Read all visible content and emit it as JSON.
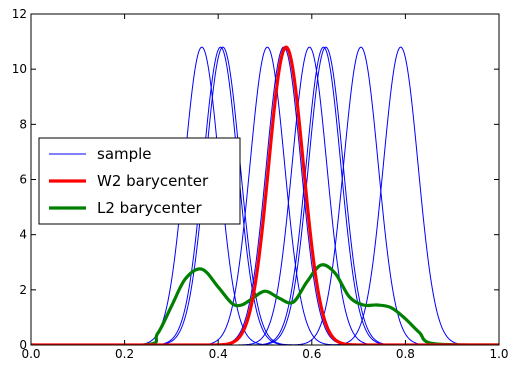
{
  "chart_data": {
    "type": "line",
    "title": "",
    "xlabel": "",
    "ylabel": "",
    "xlim": [
      0.0,
      1.0
    ],
    "ylim": [
      0,
      12
    ],
    "xticks": [
      "0.0",
      "0.2",
      "0.4",
      "0.6",
      "0.8",
      "1.0"
    ],
    "yticks": [
      "0",
      "2",
      "4",
      "6",
      "8",
      "10",
      "12"
    ],
    "grid": false,
    "legend_position": "center-left",
    "legend": [
      {
        "label": "sample",
        "color": "#0000ff",
        "style": "thin"
      },
      {
        "label": "W2 barycenter",
        "color": "#ff0000",
        "style": "thick"
      },
      {
        "label": "L2 barycenter",
        "color": "#008000",
        "style": "thick"
      }
    ],
    "sample_series": {
      "name": "sample",
      "color": "#0000ff",
      "peak": 10.8,
      "sigma": 0.037,
      "centers": [
        0.365,
        0.405,
        0.41,
        0.505,
        0.54,
        0.595,
        0.625,
        0.63,
        0.705,
        0.79
      ]
    },
    "w2_series": {
      "name": "W2 barycenter",
      "color": "#ff0000",
      "peak": 10.8,
      "sigma": 0.037,
      "center": 0.545
    },
    "l2_series": {
      "name": "L2 barycenter",
      "color": "#008000",
      "x": [
        0.0,
        0.24,
        0.27,
        0.3,
        0.33,
        0.365,
        0.4,
        0.43,
        0.45,
        0.47,
        0.5,
        0.53,
        0.56,
        0.59,
        0.62,
        0.65,
        0.68,
        0.71,
        0.74,
        0.77,
        0.8,
        0.83,
        0.86,
        1.0
      ],
      "y": [
        0.0,
        0.0,
        0.4,
        1.4,
        2.4,
        2.75,
        2.1,
        1.5,
        1.45,
        1.65,
        1.95,
        1.7,
        1.55,
        2.3,
        2.9,
        2.6,
        1.75,
        1.45,
        1.45,
        1.35,
        0.95,
        0.45,
        0.05,
        0.0
      ]
    }
  }
}
